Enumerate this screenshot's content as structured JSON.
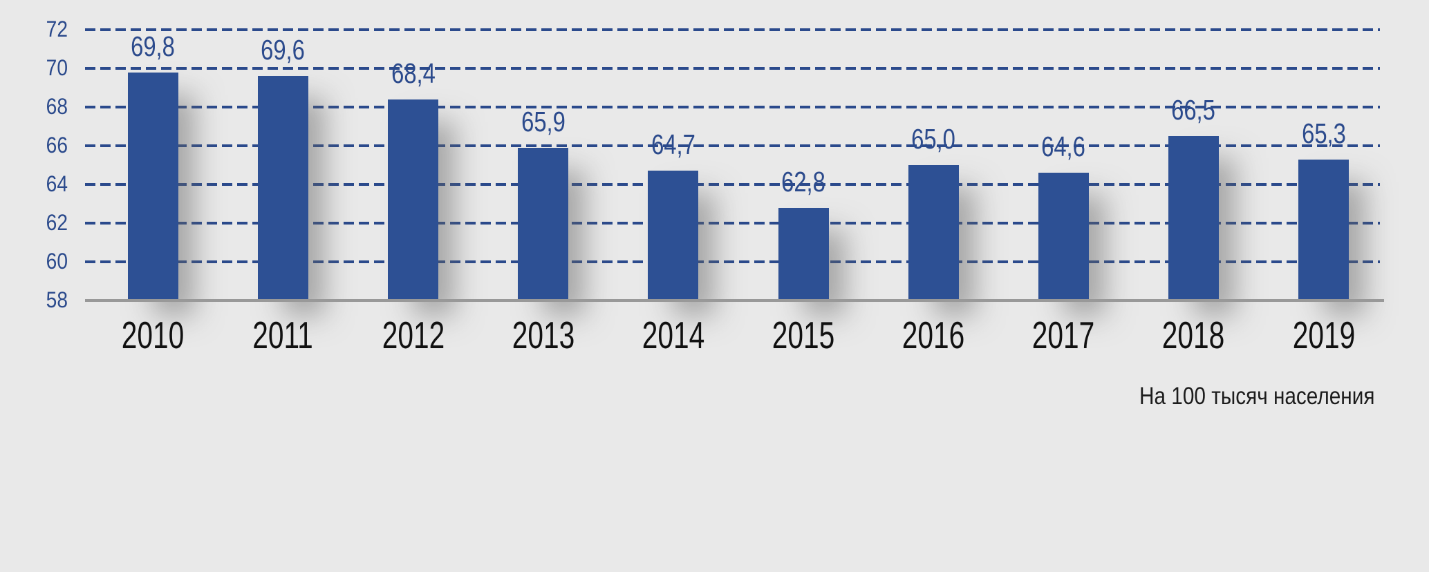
{
  "chart_data": {
    "type": "bar",
    "categories": [
      "2010",
      "2011",
      "2012",
      "2013",
      "2014",
      "2015",
      "2016",
      "2017",
      "2018",
      "2019"
    ],
    "values": [
      69.8,
      69.6,
      68.4,
      65.9,
      64.7,
      62.8,
      65.0,
      64.6,
      66.5,
      65.3
    ],
    "value_labels": [
      "69,8",
      "69,6",
      "68,4",
      "65,9",
      "64,7",
      "62,8",
      "65,0",
      "64,6",
      "66,5",
      "65,3"
    ],
    "ylim": [
      58,
      72
    ],
    "yticks": [
      58,
      60,
      62,
      64,
      66,
      68,
      70,
      72
    ],
    "ytick_labels": [
      "58",
      "60",
      "62",
      "64",
      "66",
      "68",
      "70",
      "72"
    ],
    "note": "На 100 тысяч населения",
    "grid": "horizontal-dashed",
    "legend": "none",
    "colors": {
      "bar": "#2d5094",
      "grid": "#2b4a8c",
      "y_tick_text": "#2b4a8c",
      "value_text": "#2b4a8c",
      "year_text": "#111111",
      "note_text": "#1c1c1c",
      "axis_line": "#999999",
      "background": "#e9e9e9"
    }
  }
}
